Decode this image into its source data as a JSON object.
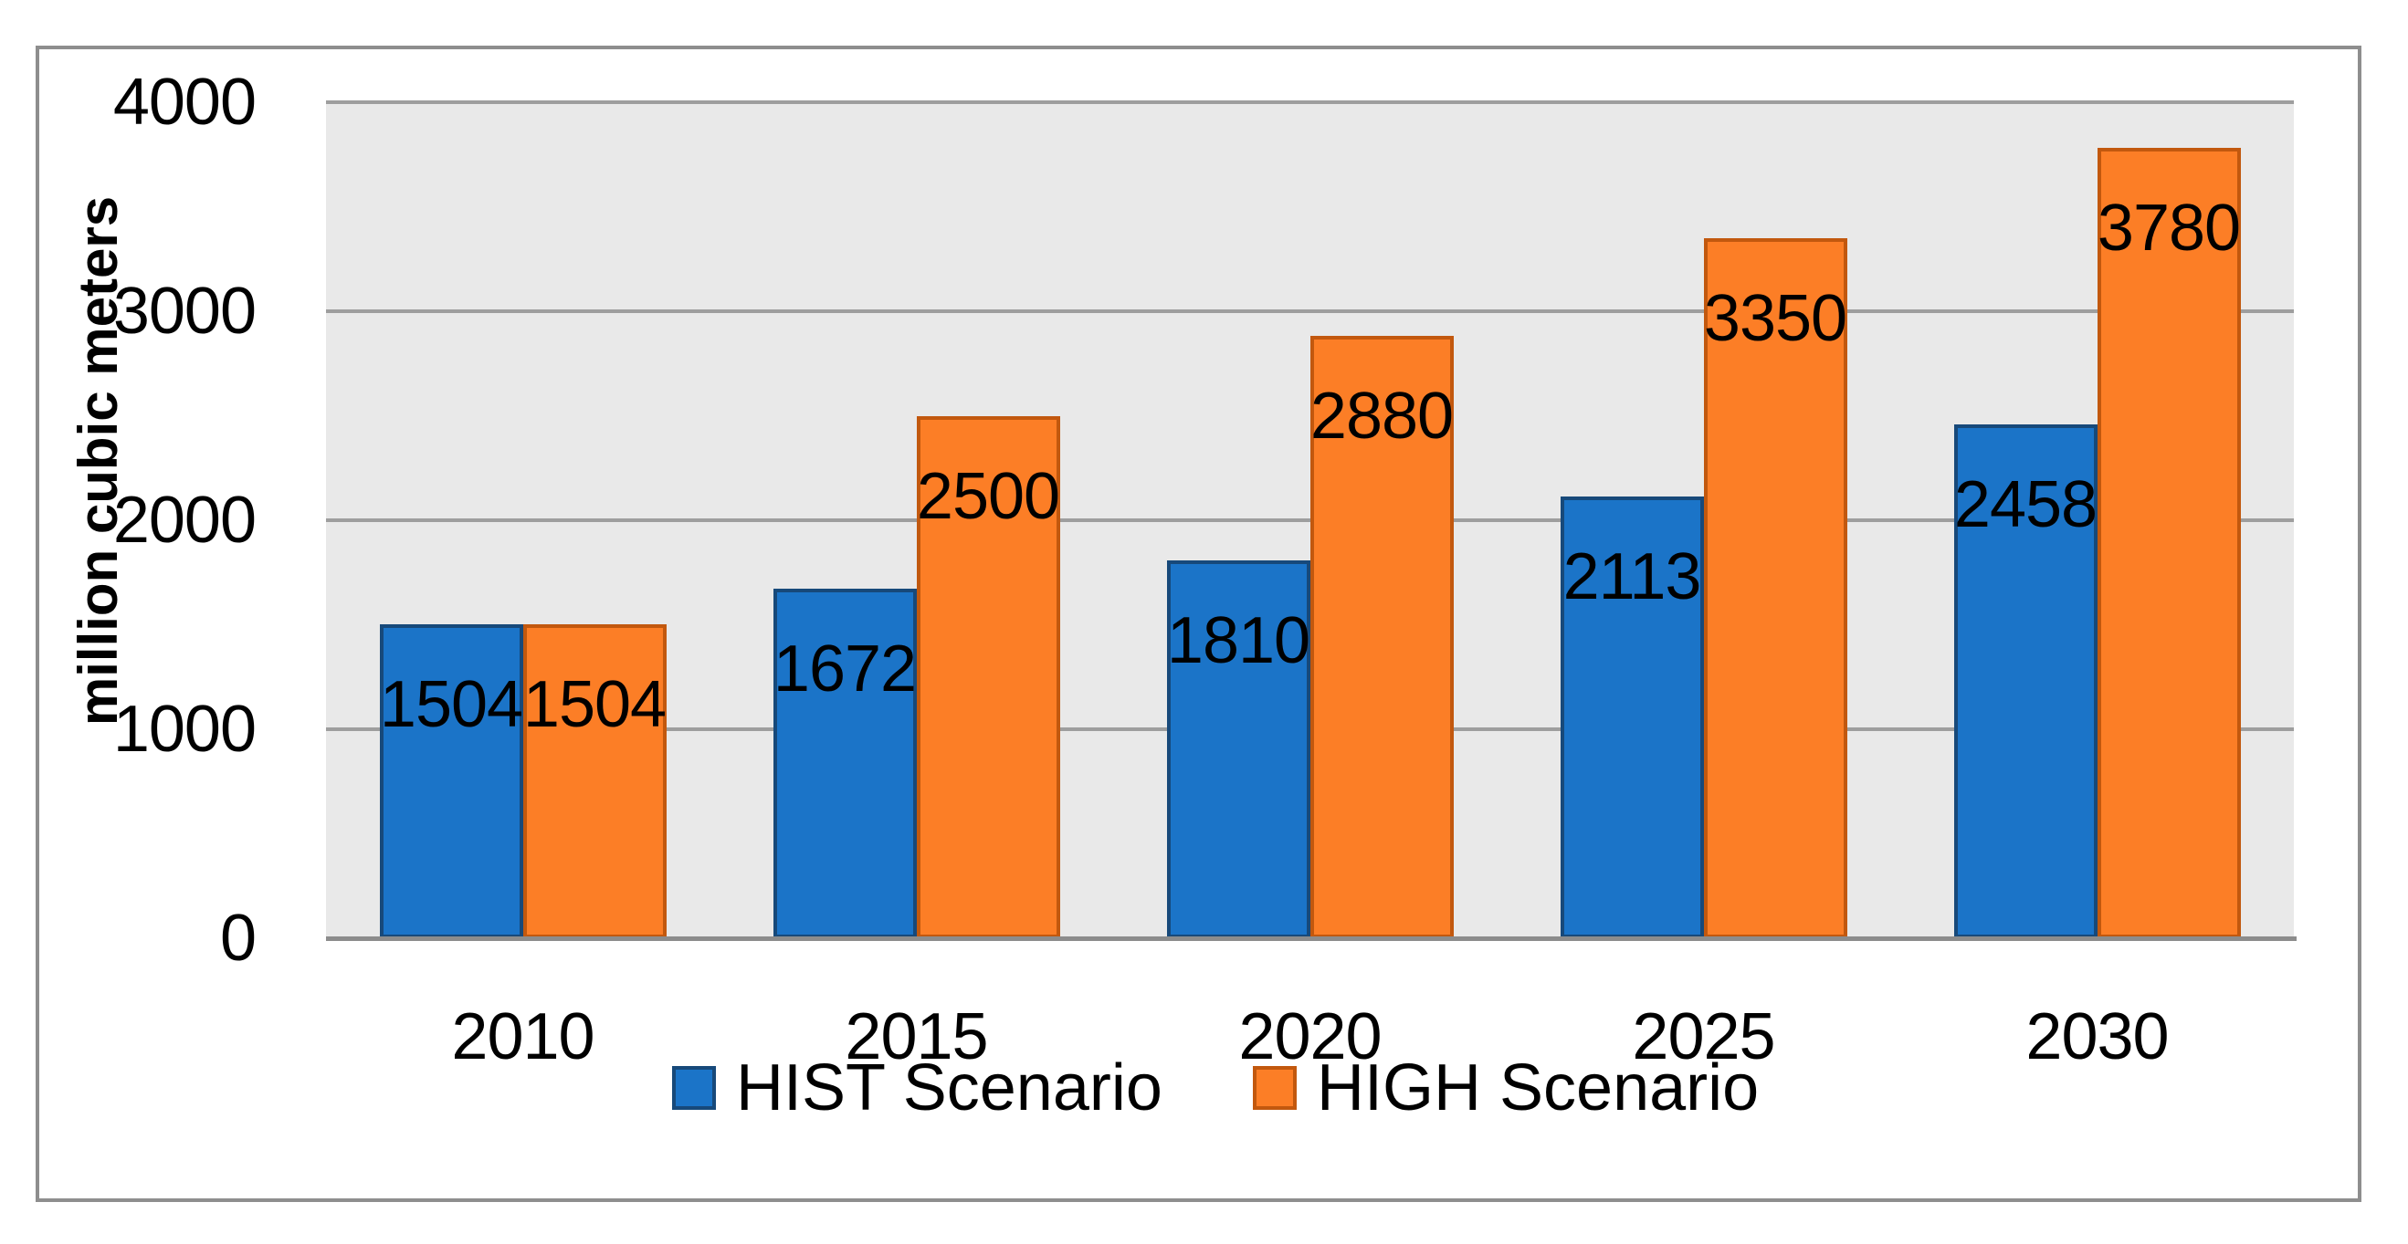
{
  "chart_data": {
    "type": "bar",
    "title": "",
    "xlabel": "",
    "ylabel": "million cubic meters",
    "categories": [
      "2010",
      "2015",
      "2020",
      "2025",
      "2030"
    ],
    "series": [
      {
        "name": "HIST Scenario",
        "color": "#1b74c8",
        "border_color": "#17497a",
        "values": [
          1504,
          1672,
          1810,
          2113,
          2458
        ]
      },
      {
        "name": "HIGH Scenario",
        "color": "#fc7e26",
        "border_color": "#c2580e",
        "values": [
          1504,
          2500,
          2880,
          3350,
          3780
        ]
      }
    ],
    "y_axis": {
      "min": 0,
      "max": 4000,
      "tick_interval": 1000,
      "tick_labels": [
        "0",
        "1000",
        "2000",
        "3000",
        "4000"
      ]
    },
    "data_labels_position": "inside-end",
    "legend_position": "bottom",
    "grid": {
      "horizontal": true,
      "color": "#9e9e9e"
    },
    "plot_background": "#e9e9e9",
    "frame_border_color": "#8e8e8e",
    "axis_line_color": "#8c8c8c"
  }
}
